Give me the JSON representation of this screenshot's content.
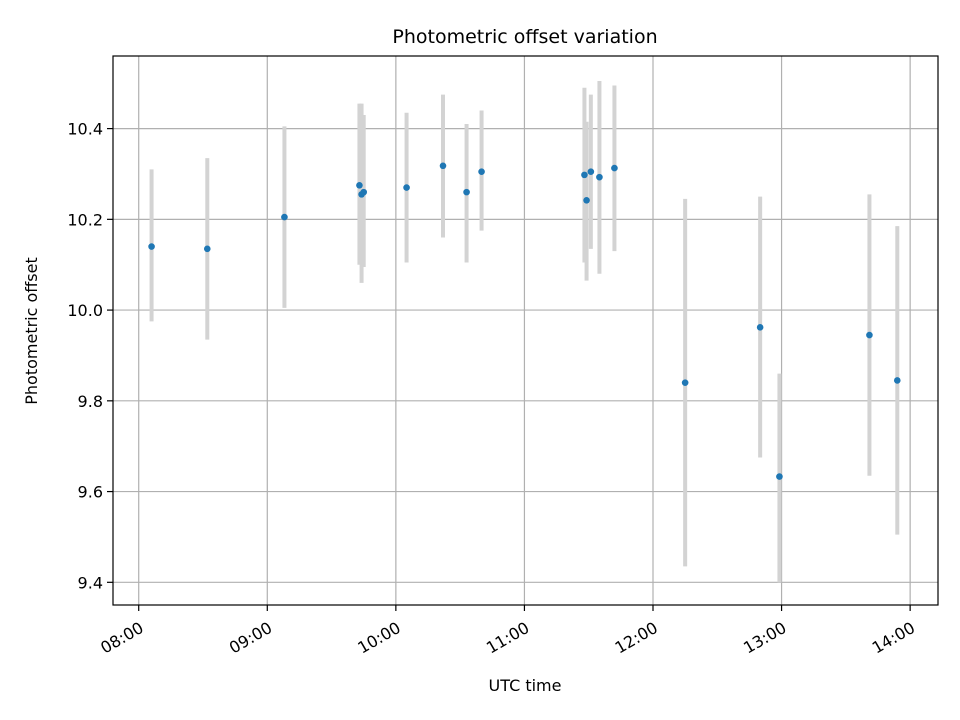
{
  "chart_data": {
    "type": "scatter",
    "title": "Photometric offset variation",
    "xlabel": "UTC time",
    "ylabel": "Photometric offset",
    "x_tick_labels": [
      "08:00",
      "09:00",
      "10:00",
      "11:00",
      "12:00",
      "13:00",
      "14:00"
    ],
    "y_tick_labels": [
      "9.4",
      "9.6",
      "9.8",
      "10.0",
      "10.2",
      "10.4"
    ],
    "y_ticks": [
      9.4,
      9.6,
      9.8,
      10.0,
      10.2,
      10.4
    ],
    "xlim": [
      "07:48",
      "14:13"
    ],
    "ylim": [
      9.35,
      10.56
    ],
    "grid": true,
    "colors": {
      "points": "#1f77b4",
      "error_bars": "#d3d3d3",
      "grid": "#b0b0b0"
    },
    "points": [
      {
        "x": "08:06",
        "y": 10.14,
        "yerr_low": 9.975,
        "yerr_high": 10.31
      },
      {
        "x": "08:32",
        "y": 10.135,
        "yerr_low": 9.935,
        "yerr_high": 10.335
      },
      {
        "x": "09:08",
        "y": 10.205,
        "yerr_low": 10.005,
        "yerr_high": 10.405
      },
      {
        "x": "09:43",
        "y": 10.275,
        "yerr_low": 10.1,
        "yerr_high": 10.455
      },
      {
        "x": "09:44",
        "y": 10.255,
        "yerr_low": 10.06,
        "yerr_high": 10.455
      },
      {
        "x": "09:45",
        "y": 10.26,
        "yerr_low": 10.095,
        "yerr_high": 10.43
      },
      {
        "x": "10:05",
        "y": 10.27,
        "yerr_low": 10.105,
        "yerr_high": 10.435
      },
      {
        "x": "10:22",
        "y": 10.318,
        "yerr_low": 10.16,
        "yerr_high": 10.475
      },
      {
        "x": "10:33",
        "y": 10.26,
        "yerr_low": 10.105,
        "yerr_high": 10.41
      },
      {
        "x": "10:40",
        "y": 10.305,
        "yerr_low": 10.175,
        "yerr_high": 10.44
      },
      {
        "x": "11:28",
        "y": 10.298,
        "yerr_low": 10.105,
        "yerr_high": 10.49
      },
      {
        "x": "11:29",
        "y": 10.242,
        "yerr_low": 10.065,
        "yerr_high": 10.415
      },
      {
        "x": "11:31",
        "y": 10.305,
        "yerr_low": 10.135,
        "yerr_high": 10.475
      },
      {
        "x": "11:35",
        "y": 10.293,
        "yerr_low": 10.08,
        "yerr_high": 10.505
      },
      {
        "x": "11:42",
        "y": 10.313,
        "yerr_low": 10.13,
        "yerr_high": 10.495
      },
      {
        "x": "12:15",
        "y": 9.84,
        "yerr_low": 9.435,
        "yerr_high": 10.245
      },
      {
        "x": "12:50",
        "y": 9.962,
        "yerr_low": 9.675,
        "yerr_high": 10.25
      },
      {
        "x": "12:59",
        "y": 9.633,
        "yerr_low": 9.4,
        "yerr_high": 9.86
      },
      {
        "x": "13:41",
        "y": 9.945,
        "yerr_low": 9.635,
        "yerr_high": 10.255
      },
      {
        "x": "13:54",
        "y": 9.845,
        "yerr_low": 9.505,
        "yerr_high": 10.185
      }
    ]
  }
}
